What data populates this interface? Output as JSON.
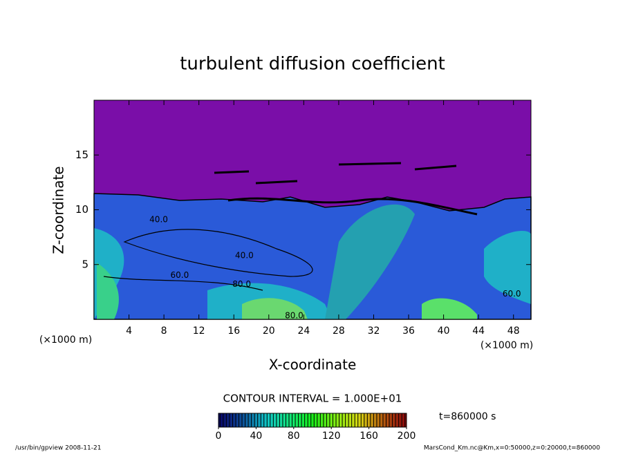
{
  "chart_data": {
    "type": "contour",
    "title": "turbulent diffusion coefficient",
    "xlabel": "X-coordinate",
    "ylabel": "Z-coordinate",
    "xunit": "(×1000 m)",
    "yunit": "(×1000 m)",
    "xlim": [
      0,
      50
    ],
    "ylim": [
      0,
      20
    ],
    "xticks": [
      4,
      8,
      12,
      16,
      20,
      24,
      28,
      32,
      36,
      40,
      44,
      48
    ],
    "yticks": [
      5,
      10,
      15
    ],
    "contour_interval": "CONTOUR INTERVAL = 1.000E+01",
    "colorbar": {
      "lim": [
        0,
        200
      ],
      "ticks": [
        0,
        40,
        80,
        120,
        160,
        200
      ]
    },
    "time_label": "t=860000 s",
    "annotations": [
      {
        "x": 7.4,
        "y": 9.1,
        "text": "40.0"
      },
      {
        "x": 17.2,
        "y": 5.8,
        "text": "40.0"
      },
      {
        "x": 9.8,
        "y": 4.0,
        "text": "60.0"
      },
      {
        "x": 16.9,
        "y": 3.2,
        "text": "80.0"
      },
      {
        "x": 22.9,
        "y": 0.3,
        "text": "80.0"
      },
      {
        "x": 47.8,
        "y": 2.3,
        "text": "60.0"
      }
    ],
    "footer_left": "/usr/bin/gpview  2008-11-21",
    "footer_right": "MarsCond_Km.nc@Km,x=0:50000,z=0:20000,t=860000"
  }
}
